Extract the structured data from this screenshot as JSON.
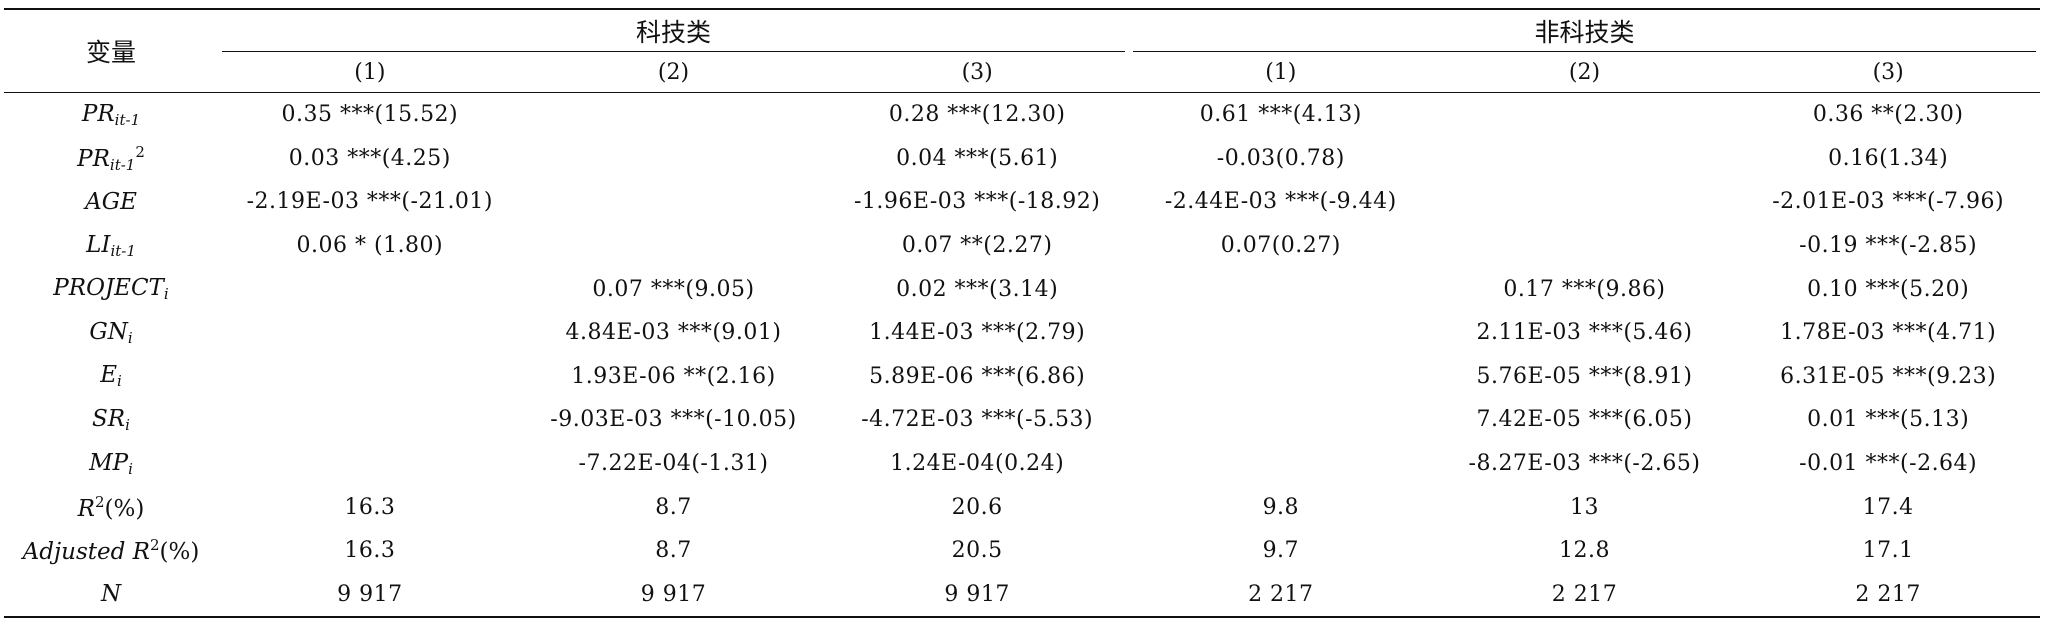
{
  "header": {
    "variable": "变量",
    "group_tech": "科技类",
    "group_nontech": "非科技类",
    "cols": [
      "(1)",
      "(2)",
      "(3)",
      "(1)",
      "(2)",
      "(3)"
    ]
  },
  "rows": [
    {
      "main": "PR",
      "sub": "it-1",
      "sup": "",
      "extra": "",
      "cells": [
        "0.35 ***(15.52)",
        "",
        "0.28 ***(12.30)",
        "0.61 ***(4.13)",
        "",
        "0.36 **(2.30)"
      ]
    },
    {
      "main": "PR",
      "sub": "it-1",
      "sup": "2",
      "extra": "",
      "cells": [
        "0.03 ***(4.25)",
        "",
        "0.04 ***(5.61)",
        "-0.03(0.78)",
        "",
        "0.16(1.34)"
      ]
    },
    {
      "main": "AGE",
      "sub": "",
      "sup": "",
      "extra": "",
      "cells": [
        "-2.19E-03 ***(-21.01)",
        "",
        "-1.96E-03 ***(-18.92)",
        "-2.44E-03 ***(-9.44)",
        "",
        "-2.01E-03 ***(-7.96)"
      ]
    },
    {
      "main": "LI",
      "sub": "it-1",
      "sup": "",
      "extra": "",
      "cells": [
        "0.06 * (1.80)",
        "",
        "0.07 **(2.27)",
        "0.07(0.27)",
        "",
        "-0.19 ***(-2.85)"
      ]
    },
    {
      "main": "PROJECT",
      "sub": "i",
      "sup": "",
      "extra": "",
      "cells": [
        "",
        "0.07 ***(9.05)",
        "0.02 ***(3.14)",
        "",
        "0.17 ***(9.86)",
        "0.10 ***(5.20)"
      ]
    },
    {
      "main": "GN",
      "sub": "i",
      "sup": "",
      "extra": "",
      "cells": [
        "",
        "4.84E-03 ***(9.01)",
        "1.44E-03 ***(2.79)",
        "",
        "2.11E-03 ***(5.46)",
        "1.78E-03 ***(4.71)"
      ]
    },
    {
      "main": "E",
      "sub": "i",
      "sup": "",
      "extra": "",
      "cells": [
        "",
        "1.93E-06 **(2.16)",
        "5.89E-06 ***(6.86)",
        "",
        "5.76E-05 ***(8.91)",
        "6.31E-05 ***(9.23)"
      ]
    },
    {
      "main": "SR",
      "sub": "i",
      "sup": "",
      "extra": "",
      "cells": [
        "",
        "-9.03E-03 ***(-10.05)",
        "-4.72E-03 ***(-5.53)",
        "",
        "7.42E-05 ***(6.05)",
        "0.01 ***(5.13)"
      ]
    },
    {
      "main": "MP",
      "sub": "i",
      "sup": "",
      "extra": "",
      "cells": [
        "",
        "-7.22E-04(-1.31)",
        "1.24E-04(0.24)",
        "",
        "-8.27E-03 ***(-2.65)",
        "-0.01 ***(-2.64)"
      ]
    },
    {
      "main": "R",
      "sub": "",
      "sup": "2",
      "extra": "(%)",
      "cells": [
        "16.3",
        "8.7",
        "20.6",
        "9.8",
        "13",
        "17.4"
      ]
    },
    {
      "main": "Adjusted R",
      "sub": "",
      "sup": "2",
      "extra": "(%)",
      "cells": [
        "16.3",
        "8.7",
        "20.5",
        "9.7",
        "12.8",
        "17.1"
      ]
    },
    {
      "main": "N",
      "sub": "",
      "sup": "",
      "extra": "",
      "cells": [
        "9 917",
        "9 917",
        "9 917",
        "2 217",
        "2 217",
        "2 217"
      ]
    }
  ]
}
